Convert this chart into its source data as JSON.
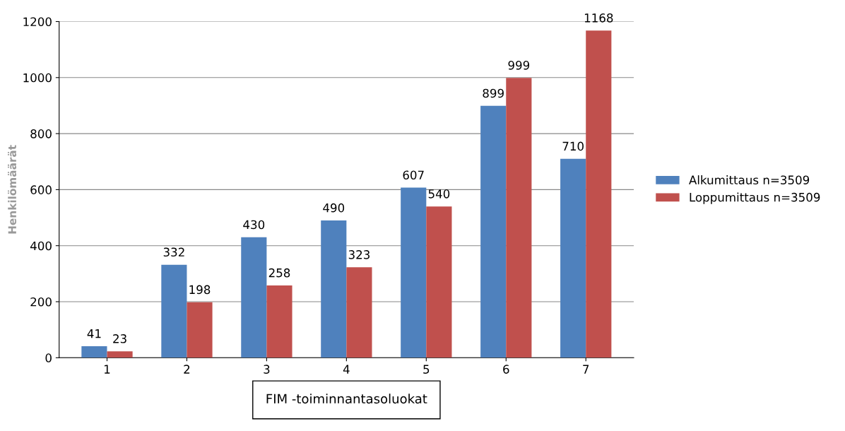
{
  "chart_data": {
    "type": "bar",
    "categories": [
      "1",
      "2",
      "3",
      "4",
      "5",
      "6",
      "7"
    ],
    "series": [
      {
        "name": "Alkumittaus n=3509",
        "color": "#4f81bd",
        "values": [
          41,
          332,
          430,
          490,
          607,
          899,
          710
        ]
      },
      {
        "name": "Loppumittaus n=3509",
        "color": "#c0504d",
        "values": [
          23,
          198,
          258,
          323,
          540,
          999,
          1168
        ]
      }
    ],
    "xlabel": "FIM -toiminnantasoluokat",
    "ylabel": "Henkilömäärät",
    "ylim": [
      0,
      1200
    ],
    "yticks": [
      0,
      200,
      400,
      600,
      800,
      1000,
      1200
    ],
    "grid": "y",
    "legend": "right",
    "data_labels": true
  }
}
